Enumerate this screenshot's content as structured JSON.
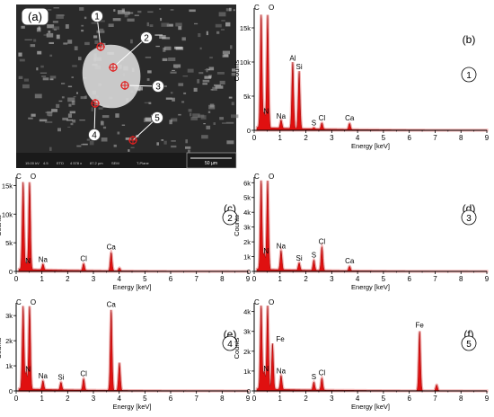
{
  "sem": {
    "label": "(a)",
    "scale_bar": "50 µm",
    "info_values": [
      "15.00 kV",
      "4.5",
      "ETD",
      "4 578 x",
      "87.2 µm",
      "SEM",
      "T-Plane"
    ],
    "points": [
      "1",
      "2",
      "3",
      "4",
      "5"
    ]
  },
  "chart_data": [
    {
      "type": "line",
      "panel": "(b)",
      "point": "1",
      "xlabel": "Energy [keV]",
      "ylabel": "Counts",
      "xlim": [
        0,
        9
      ],
      "ylim": [
        0,
        17500
      ],
      "xticks": [
        0,
        1,
        2,
        3,
        4,
        5,
        6,
        7,
        8,
        9
      ],
      "yticks": [
        {
          "v": 0,
          "t": "0"
        },
        {
          "v": 5000,
          "t": "5k"
        },
        {
          "v": 10000,
          "t": "10k"
        },
        {
          "v": 15000,
          "t": "15k"
        }
      ],
      "peaks": [
        {
          "e": 0.27,
          "h": 16500,
          "label": "C"
        },
        {
          "e": 0.52,
          "h": 16500,
          "label": "O"
        },
        {
          "e": 0.39,
          "h": 2200,
          "label": "N"
        },
        {
          "e": 1.04,
          "h": 1200,
          "label": "Na"
        },
        {
          "e": 1.49,
          "h": 9700,
          "label": "Al"
        },
        {
          "e": 1.74,
          "h": 8400,
          "label": "Si"
        },
        {
          "e": 2.31,
          "h": 200,
          "label": "S"
        },
        {
          "e": 2.62,
          "h": 900,
          "label": "Cl"
        },
        {
          "e": 3.69,
          "h": 900,
          "label": "Ca"
        }
      ]
    },
    {
      "type": "line",
      "panel": "(c)",
      "point": "2",
      "xlabel": "Energy [keV]",
      "ylabel": "Counts",
      "xlim": [
        0,
        9
      ],
      "ylim": [
        0,
        16000
      ],
      "xticks": [
        0,
        1,
        2,
        3,
        4,
        5,
        6,
        7,
        8,
        9
      ],
      "yticks": [
        {
          "v": 0,
          "t": "0"
        },
        {
          "v": 5000,
          "t": "5k"
        },
        {
          "v": 10000,
          "t": "10k"
        },
        {
          "v": 15000,
          "t": "15k"
        }
      ],
      "peaks": [
        {
          "e": 0.27,
          "h": 15200,
          "label": "C"
        },
        {
          "e": 0.52,
          "h": 15200,
          "label": "O"
        },
        {
          "e": 0.39,
          "h": 1100,
          "label": "N"
        },
        {
          "e": 1.04,
          "h": 1000,
          "label": "Na"
        },
        {
          "e": 2.62,
          "h": 1200,
          "label": "Cl"
        },
        {
          "e": 3.69,
          "h": 3200,
          "label": "Ca"
        },
        {
          "e": 4.01,
          "h": 500,
          "label": ""
        }
      ]
    },
    {
      "type": "line",
      "panel": "(d)",
      "point": "3",
      "xlabel": "Energy [keV]",
      "ylabel": "Counts",
      "xlim": [
        0,
        9
      ],
      "ylim": [
        0,
        6200
      ],
      "xticks": [
        0,
        1,
        2,
        3,
        4,
        5,
        6,
        7,
        8,
        9
      ],
      "yticks": [
        {
          "v": 0,
          "t": "0"
        },
        {
          "v": 1000,
          "t": "1k"
        },
        {
          "v": 2000,
          "t": "2k"
        },
        {
          "v": 3000,
          "t": "3k"
        },
        {
          "v": 4000,
          "t": "4k"
        },
        {
          "v": 5000,
          "t": "5k"
        },
        {
          "v": 6000,
          "t": "6k"
        }
      ],
      "peaks": [
        {
          "e": 0.27,
          "h": 6000,
          "label": "C"
        },
        {
          "e": 0.52,
          "h": 6000,
          "label": "O"
        },
        {
          "e": 0.39,
          "h": 1100,
          "label": "N"
        },
        {
          "e": 1.04,
          "h": 1300,
          "label": "Na"
        },
        {
          "e": 1.74,
          "h": 500,
          "label": "Si"
        },
        {
          "e": 2.31,
          "h": 700,
          "label": "S"
        },
        {
          "e": 2.62,
          "h": 1600,
          "label": "Cl"
        },
        {
          "e": 3.69,
          "h": 300,
          "label": "Ca"
        }
      ]
    },
    {
      "type": "line",
      "panel": "(e)",
      "point": "4",
      "xlabel": "Energy [keV]",
      "ylabel": "Counts",
      "xlim": [
        0,
        9
      ],
      "ylim": [
        0,
        3400
      ],
      "xticks": [
        0,
        1,
        2,
        3,
        4,
        5,
        6,
        7,
        8,
        9
      ],
      "yticks": [
        {
          "v": 0,
          "t": "0"
        },
        {
          "v": 1000,
          "t": "1k"
        },
        {
          "v": 2000,
          "t": "2k"
        },
        {
          "v": 3000,
          "t": "3k"
        }
      ],
      "peaks": [
        {
          "e": 0.27,
          "h": 3300,
          "label": "C"
        },
        {
          "e": 0.52,
          "h": 3300,
          "label": "O"
        },
        {
          "e": 0.39,
          "h": 700,
          "label": "N"
        },
        {
          "e": 1.04,
          "h": 350,
          "label": "Na"
        },
        {
          "e": 1.74,
          "h": 300,
          "label": "Si"
        },
        {
          "e": 2.62,
          "h": 450,
          "label": "Cl"
        },
        {
          "e": 3.69,
          "h": 3200,
          "label": "Ca"
        },
        {
          "e": 4.01,
          "h": 1100,
          "label": ""
        }
      ]
    },
    {
      "type": "line",
      "panel": "(f)",
      "point": "5",
      "xlabel": "Energy [keV]",
      "ylabel": "Counts",
      "xlim": [
        0,
        9
      ],
      "ylim": [
        0,
        4300
      ],
      "xticks": [
        0,
        1,
        2,
        3,
        4,
        5,
        6,
        7,
        8,
        9
      ],
      "yticks": [
        {
          "v": 0,
          "t": "0"
        },
        {
          "v": 1000,
          "t": "1k"
        },
        {
          "v": 2000,
          "t": "2k"
        },
        {
          "v": 3000,
          "t": "3k"
        },
        {
          "v": 4000,
          "t": "4k"
        }
      ],
      "peaks": [
        {
          "e": 0.27,
          "h": 4200,
          "label": "C"
        },
        {
          "e": 0.52,
          "h": 4200,
          "label": "O"
        },
        {
          "e": 0.39,
          "h": 900,
          "label": "N"
        },
        {
          "e": 0.71,
          "h": 2300,
          "label": "Fe"
        },
        {
          "e": 1.04,
          "h": 700,
          "label": "Na"
        },
        {
          "e": 2.31,
          "h": 400,
          "label": "S"
        },
        {
          "e": 2.62,
          "h": 600,
          "label": "Cl"
        },
        {
          "e": 6.4,
          "h": 3000,
          "label": "Fe"
        },
        {
          "e": 7.06,
          "h": 300,
          "label": ""
        }
      ]
    }
  ],
  "colors": {
    "spectrum_fill": "#e01010",
    "spectrum_glow": "#f3b3b3",
    "axis": "#000000",
    "marker": "#e02020"
  }
}
